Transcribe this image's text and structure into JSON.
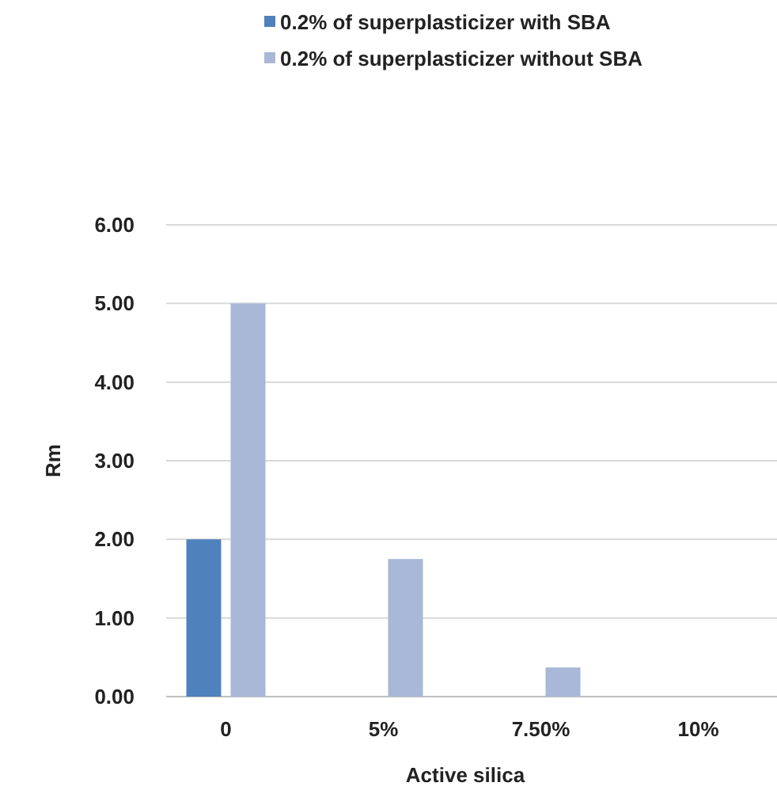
{
  "chart_data": {
    "type": "bar",
    "xlabel": "Active silica",
    "ylabel": "Rm",
    "categories": [
      "0",
      "5%",
      "7.50%",
      "10%"
    ],
    "series": [
      {
        "name": "0.2% of superplasticizer with SBA",
        "color": "#4f81bd",
        "values": [
          2.0,
          null,
          null,
          null
        ]
      },
      {
        "name": "0.2% of superplasticizer without SBA",
        "color": "#a8b8d6",
        "values": [
          5.0,
          1.75,
          0.37,
          null
        ]
      }
    ],
    "ylim": [
      0,
      6
    ],
    "yticks": [
      {
        "value": 0,
        "label": "0.00"
      },
      {
        "value": 1,
        "label": "1.00"
      },
      {
        "value": 2,
        "label": "2.00"
      },
      {
        "value": 3,
        "label": "3.00"
      },
      {
        "value": 4,
        "label": "4.00"
      },
      {
        "value": 5,
        "label": "5.00"
      },
      {
        "value": 6,
        "label": "6.00"
      }
    ],
    "grid": "y",
    "legend": "top"
  }
}
